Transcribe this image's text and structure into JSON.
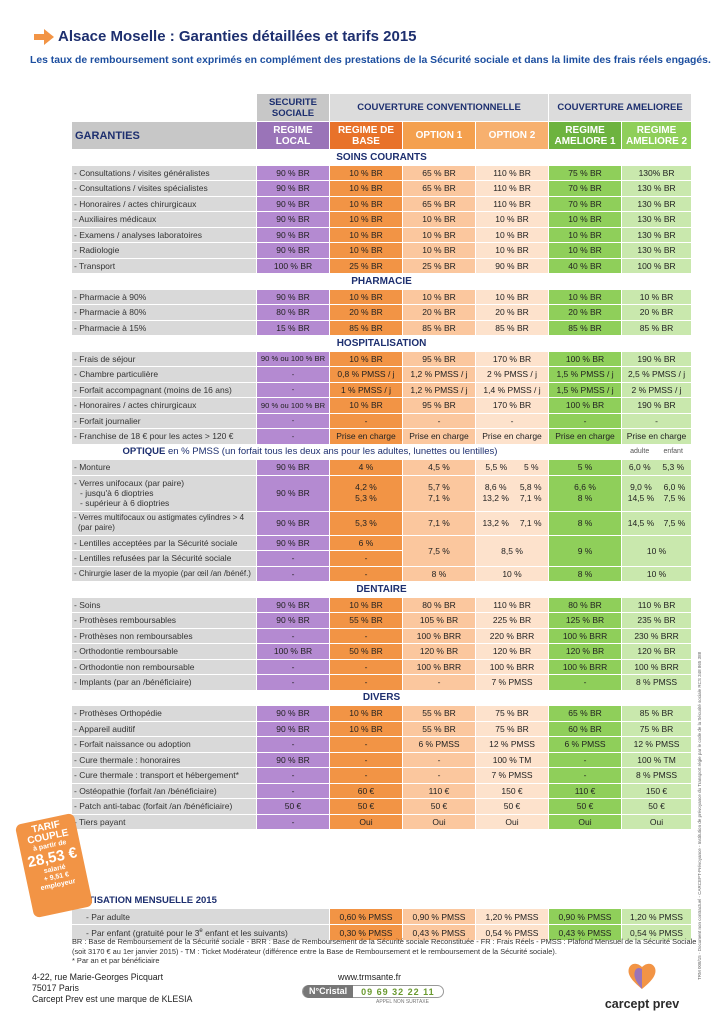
{
  "title": "Alsace Moselle : Garanties détaillées et tarifs 2015",
  "subtitle": "Les taux de remboursement sont exprimés en complément des prestations de la Sécurité sociale et dans la limite des frais réels engagés.",
  "headers": {
    "securite_sociale": "SECURITE SOCIALE",
    "couverture_conv": "COUVERTURE CONVENTIONNELLE",
    "couverture_amel": "COUVERTURE AMELIOREE",
    "garanties": "GARANTIES",
    "regime_local": "REGIME LOCAL",
    "regime_base": "REGIME DE BASE",
    "option1": "OPTION 1",
    "option2": "OPTION 2",
    "amel1": "REGIME AMELIORE 1",
    "amel2": "REGIME AMELIORE 2"
  },
  "sections": {
    "soins": "SOINS COURANTS",
    "pharmacie": "PHARMACIE",
    "hospi": "HOSPITALISATION",
    "optique": "OPTIQUE",
    "optique_rest": " en % PMSS (un forfait tous les deux ans pour les adultes, lunettes ou lentilles)",
    "dentaire": "DENTAIRE",
    "divers": "DIVERS"
  },
  "soins_rows": [
    [
      "- Consultations / visites généralistes",
      "90 % BR",
      "10 % BR",
      "65 % BR",
      "110 % BR",
      "75 % BR",
      "130% BR"
    ],
    [
      "- Consultations / visites spécialistes",
      "90 % BR",
      "10 % BR",
      "65 % BR",
      "110 % BR",
      "70 % BR",
      "130 % BR"
    ],
    [
      "- Honoraires / actes chirurgicaux",
      "90 % BR",
      "10 % BR",
      "65 % BR",
      "110 % BR",
      "70 % BR",
      "130 % BR"
    ],
    [
      "- Auxiliaires médicaux",
      "90 % BR",
      "10 % BR",
      "10 % BR",
      "10 % BR",
      "10 % BR",
      "130 % BR"
    ],
    [
      "- Examens / analyses laboratoires",
      "90 % BR",
      "10 % BR",
      "10 % BR",
      "10 % BR",
      "10 % BR",
      "130 % BR"
    ],
    [
      "- Radiologie",
      "90 % BR",
      "10 % BR",
      "10 % BR",
      "10 % BR",
      "10 % BR",
      "130 % BR"
    ],
    [
      "- Transport",
      "100 % BR",
      "25 % BR",
      "25 % BR",
      "90 % BR",
      "40 % BR",
      "100 % BR"
    ]
  ],
  "pharma_rows": [
    [
      "- Pharmacie à 90%",
      "90 % BR",
      "10 % BR",
      "10 % BR",
      "10 % BR",
      "10 % BR",
      "10 % BR"
    ],
    [
      "- Pharmacie à 80%",
      "80 % BR",
      "20 % BR",
      "20 % BR",
      "20 % BR",
      "20 % BR",
      "20 % BR"
    ],
    [
      "- Pharmacie à 15%",
      "15 % BR",
      "85 % BR",
      "85 % BR",
      "85 % BR",
      "85 % BR",
      "85 % BR"
    ]
  ],
  "hospi_rows": [
    [
      "- Frais de séjour",
      "90 % ou 100 % BR",
      "10 % BR",
      "95 % BR",
      "170 % BR",
      "100 % BR",
      "190 % BR"
    ],
    [
      "- Chambre particulière",
      "-",
      "0,8 % PMSS / j",
      "1,2 % PMSS / j",
      "2 % PMSS / j",
      "1,5 % PMSS / j",
      "2,5 % PMSS / j"
    ],
    [
      "- Forfait accompagnant (moins de 16 ans)",
      "-",
      "1 % PMSS / j",
      "1,2 % PMSS / j",
      "1,4 % PMSS / j",
      "1,5 % PMSS / j",
      "2 % PMSS / j"
    ],
    [
      "- Honoraires / actes chirurgicaux",
      "90 % ou 100 % BR",
      "10 % BR",
      "95 % BR",
      "170 % BR",
      "100 % BR",
      "190 % BR"
    ],
    [
      "- Forfait journalier",
      "-",
      "-",
      "-",
      "-",
      "-",
      "-"
    ],
    [
      "- Franchise de 18 € pour les actes > 120 €",
      "-",
      "Prise en charge",
      "Prise en charge",
      "Prise en charge",
      "Prise en charge",
      "Prise en charge"
    ]
  ],
  "optique": {
    "adulte": "adulte",
    "enfant": "enfant",
    "monture": [
      "- Monture",
      "90 % BR",
      "4 %",
      "4,5 %",
      "5,5 %",
      "5 %",
      "5 %",
      "6,0 %",
      "5,3 %"
    ],
    "unifocaux_label": "- Verres unifocaux (par paire)",
    "unifocaux_sub1": "- jusqu'à 6 dioptries",
    "unifocaux_sub2": "- supérieur à 6 dioptries",
    "unifocaux_ss": "90 % BR",
    "unifocaux_base": [
      "4,2 %",
      "5,3 %"
    ],
    "unifocaux_opt1": [
      "5,7 %",
      "7,1 %"
    ],
    "unifocaux_opt2_a": [
      "8,6 %",
      "13,2 %"
    ],
    "unifocaux_opt2_e": [
      "5,8 %",
      "7,1 %"
    ],
    "unifocaux_am1": [
      "6,6 %",
      "8 %"
    ],
    "unifocaux_am2_a": [
      "9,0 %",
      "14,5 %"
    ],
    "unifocaux_am2_e": [
      "6,0 %",
      "7,5 %"
    ],
    "multi_label": "- Verres multifocaux ou astigmates cylindres > 4",
    "multi_label2": "(par paire)",
    "multi": [
      "90 % BR",
      "5,3 %",
      "7,1 %",
      "13,2 %",
      "7,1 %",
      "8 %",
      "14,5 %",
      "7,5 %"
    ],
    "lentilles_acc": [
      "- Lentilles acceptées par la Sécurité sociale",
      "90 % BR",
      "6 %"
    ],
    "lentilles_ref": [
      "- Lentilles refusées par la Sécurité sociale",
      "-",
      "-"
    ],
    "lentilles_shared": [
      "7,5 %",
      "8,5 %",
      "9 %",
      "10 %"
    ],
    "chirurgie": [
      "- Chirurgie laser de la myopie (par œil /an /bénéf.)",
      "-",
      "-",
      "8 %",
      "10 %",
      "8 %",
      "10 %"
    ]
  },
  "dentaire_rows": [
    [
      "- Soins",
      "90 % BR",
      "10 % BR",
      "80 % BR",
      "110 % BR",
      "80 % BR",
      "110 % BR"
    ],
    [
      "- Prothèses remboursables",
      "90 % BR",
      "55 % BR",
      "105 % BR",
      "225 % BR",
      "125 % BR",
      "235 % BR"
    ],
    [
      "- Prothèses non remboursables",
      "-",
      "-",
      "100 % BRR",
      "220 % BRR",
      "100 % BRR",
      "230 % BRR"
    ],
    [
      "- Orthodontie remboursable",
      "100 % BR",
      "50 % BR",
      "120 % BR",
      "120 % BR",
      "120 % BR",
      "120 % BR"
    ],
    [
      "- Orthodontie non remboursable",
      "-",
      "-",
      "100 % BRR",
      "100 % BRR",
      "100 % BRR",
      "100 % BRR"
    ],
    [
      "- Implants (par an /bénéficiaire)",
      "-",
      "-",
      "-",
      "7 % PMSS",
      "-",
      "8 % PMSS"
    ]
  ],
  "divers_rows": [
    [
      "- Prothèses Orthopédie",
      "90 % BR",
      "10 % BR",
      "55 % BR",
      "75 % BR",
      "65 % BR",
      "85 % BR"
    ],
    [
      "- Appareil auditif",
      "90 % BR",
      "10 % BR",
      "55 % BR",
      "75 % BR",
      "60 % BR",
      "75 % BR"
    ],
    [
      "- Forfait  naissance ou adoption",
      "-",
      "-",
      "6 % PMSS",
      "12 % PMSS",
      "6 % PMSS",
      "12 % PMSS"
    ],
    [
      "- Cure thermale : honoraires",
      "90 % BR",
      "-",
      "-",
      "100 % TM",
      "-",
      "100 % TM"
    ],
    [
      "- Cure thermale : transport et hébergement*",
      "-",
      "-",
      "-",
      "7 % PMSS",
      "-",
      "8 % PMSS"
    ],
    [
      "- Ostéopathie (forfait /an /bénéficiaire)",
      "-",
      "60 €",
      "110 €",
      "150 €",
      "110 €",
      "150 €"
    ],
    [
      "- Patch anti-tabac (forfait /an /bénéficiaire)",
      "50 €",
      "50 €",
      "50 €",
      "50 €",
      "50 €",
      "50 €"
    ],
    [
      "- Tiers payant",
      "-",
      "Oui",
      "Oui",
      "Oui",
      "Oui",
      "Oui"
    ]
  ],
  "cotisation": {
    "title": "COTISATION MENSUELLE 2015",
    "adulte": [
      "- Par adulte",
      "0,60 % PMSS",
      "0,90 % PMSS",
      "1,20 % PMSS",
      "0,90 % PMSS",
      "1,20 % PMSS"
    ],
    "enfant_label": "- Par enfant (gratuité pour le 3",
    "enfant_sup": "e",
    "enfant_rest": " enfant et les suivants)",
    "enfant": [
      "0,30 % PMSS",
      "0,43 % PMSS",
      "0,54 % PMSS",
      "0,43 % PMSS",
      "0,54 % PMSS"
    ]
  },
  "badge": {
    "l1": "TARIF",
    "l2": "COUPLE",
    "l3": "à partir de",
    "l4": "28,53 €",
    "l5": "salarié",
    "l6": "+ 9,51 €",
    "l7": "employeur"
  },
  "legend": {
    "text": "BR : Base de Remboursement de la Sécurité sociale - BRR : Base de Remboursement de la Sécurité sociale Reconstituée - FR : Frais Réels - PMSS : Plafond Mensuel de la Sécurité Sociale (soit  3170 € au 1er janvier 2015) - TM : Ticket Modérateur (différence entre la Base de Remboursement et le remboursement de la Sécurité sociale).",
    "note": "* Par an et par bénéficiaire"
  },
  "footer": {
    "addr1": "4-22, rue Marie-Georges Picquart",
    "addr2": "75017 Paris",
    "addr3": "Carcept Prev est une marque de KLESIA",
    "web": "www.trmsante.fr",
    "cristal_label": "N°Cristal",
    "cristal_number": "09 69 32 22 11",
    "cristal_sub": "APPEL NON SURTAXE",
    "brand": "carcept prev"
  },
  "side_text": "TRM 008/15 - Document non contractuel - CARCEPT-Prévoyance - Institution de prévoyance du Transport régie par le code de la Sécurité sociale RCS 348 865 388",
  "colors": {
    "title": "#1d2f6f",
    "orange": "#f29445",
    "purple": "#b48ad1",
    "green": "#8fcf5a"
  }
}
